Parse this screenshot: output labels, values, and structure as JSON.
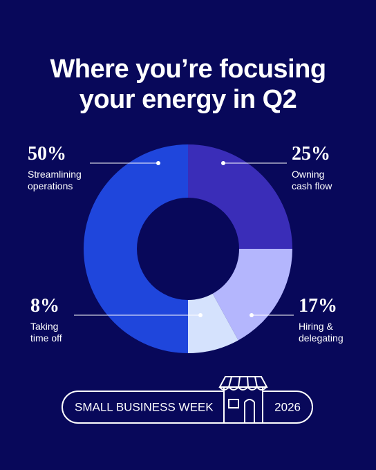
{
  "chart_data": {
    "type": "donut",
    "title": "Where you’re focusing your energy in Q2",
    "categories": [
      "Owning cash flow",
      "Hiring & delegating",
      "Taking time off",
      "Streamlining operations"
    ],
    "values": [
      25,
      17,
      8,
      50
    ],
    "value_labels": [
      "25%",
      "17%",
      "8%",
      "50%"
    ],
    "colors": [
      "#3a2db8",
      "#b4b6fd",
      "#d5e2fd",
      "#1f46dc"
    ],
    "badge": {
      "left": "SMALL BUSINESS WEEK",
      "right": "2026"
    }
  }
}
